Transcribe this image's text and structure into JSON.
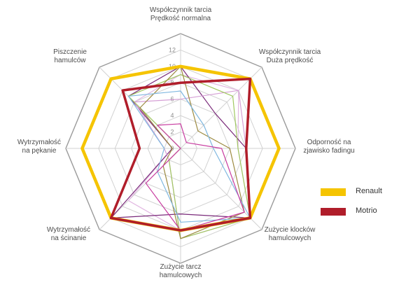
{
  "chart_data": {
    "type": "radar",
    "axes": [
      "Współczynnik tarcia\nPrędkość normalna",
      "Współczynnik tarcia\nDuża prędkość",
      "Odporność na\nzjawisko fadingu",
      "Zużycie klocków\nhamulcowych",
      "Zużycie tarcz\nhamulcowych",
      "Wytrzymałość\nna ścinanie",
      "Wytrzymałość\nna pękanie",
      "Piszczenie\nhamulców"
    ],
    "ticks": [
      0,
      2,
      4,
      6,
      8,
      10,
      12
    ],
    "rmax": 14,
    "series": [
      {
        "name": "Renault",
        "color": "#f5c400",
        "width": 4.5,
        "values": [
          10,
          12,
          12,
          12,
          10,
          12,
          12,
          12
        ]
      },
      {
        "name": "Motrio",
        "color": "#b01d2a",
        "width": 3.5,
        "values": [
          8,
          12,
          8,
          12,
          10,
          12,
          5,
          10
        ]
      },
      {
        "color": "#e2b8e2",
        "width": 1.2,
        "values": [
          9,
          10,
          7,
          12,
          10,
          9,
          1,
          8
        ]
      },
      {
        "color": "#7a2a7a",
        "width": 1.2,
        "values": [
          10,
          6,
          8,
          12,
          8,
          12,
          1,
          9
        ]
      },
      {
        "color": "#d6a0d6",
        "width": 1.2,
        "values": [
          6,
          10,
          8,
          12,
          11,
          2,
          2,
          8
        ]
      },
      {
        "color": "#a0c860",
        "width": 1.2,
        "values": [
          9,
          9,
          7,
          12,
          11,
          2,
          0,
          9
        ]
      },
      {
        "color": "#9c8a40",
        "width": 1.2,
        "values": [
          10,
          3,
          6,
          11,
          11,
          3,
          1,
          7
        ]
      },
      {
        "color": "#80b8e0",
        "width": 1.2,
        "values": [
          7,
          4,
          4,
          12,
          9,
          4,
          2,
          9
        ]
      },
      {
        "color": "#c83ca0",
        "width": 1.2,
        "values": [
          3,
          1,
          5,
          11,
          10,
          6,
          0,
          4
        ]
      }
    ],
    "legend_position": "right"
  },
  "legend": {
    "renault": {
      "label": "Renault",
      "color": "#f5c400"
    },
    "motrio": {
      "label": "Motrio",
      "color": "#b01d2a"
    }
  }
}
